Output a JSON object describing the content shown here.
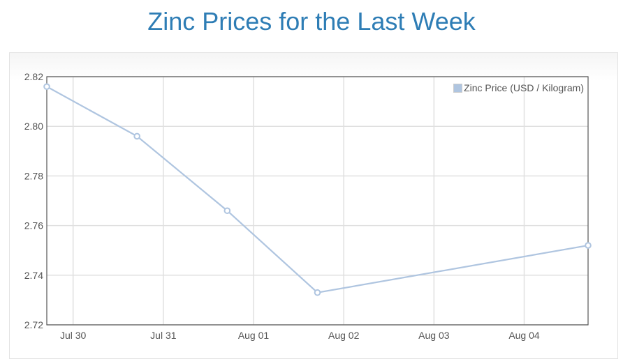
{
  "title": "Zinc Prices for the Last Week",
  "chart_data": {
    "type": "line",
    "title": "Zinc Prices for the Last Week",
    "xlabel": "",
    "ylabel": "",
    "x": [
      "07-29 17:00",
      "07-30 17:00",
      "07-31 17:00",
      "08-01 17:00",
      "08-04 17:00"
    ],
    "series": [
      {
        "name": "Zinc Price (USD / Kilogram)",
        "values": [
          2.816,
          2.796,
          2.766,
          2.733,
          2.752
        ],
        "color": "#afc5e0"
      }
    ],
    "xlim": [
      "07-29 17:00",
      "08-04 17:00"
    ],
    "ylim": [
      2.72,
      2.82
    ],
    "yticks": [
      "2.72",
      "2.74",
      "2.76",
      "2.78",
      "2.80",
      "2.82"
    ],
    "xticks": [
      {
        "date": "07-30 00:00",
        "label": "Jul 30"
      },
      {
        "date": "07-31 00:00",
        "label": "Jul 31"
      },
      {
        "date": "08-01 00:00",
        "label": "Aug 01"
      },
      {
        "date": "08-02 00:00",
        "label": "Aug 02"
      },
      {
        "date": "08-03 00:00",
        "label": "Aug 03"
      },
      {
        "date": "08-04 00:00",
        "label": "Aug 04"
      }
    ],
    "grid": true,
    "legend_position": "top-right",
    "markers": "hollow-circle"
  }
}
